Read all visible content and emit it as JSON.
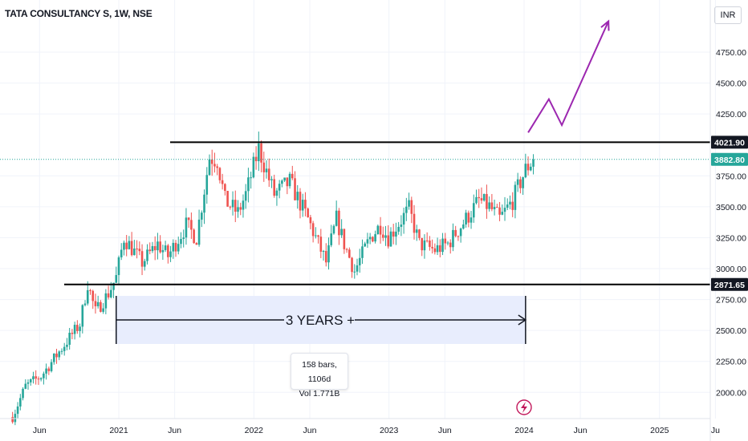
{
  "header": {
    "title": "TATA CONSULTANCY S, 1W, NSE",
    "currency": "INR"
  },
  "measure": {
    "label": "3 YEARS +",
    "bars": "158 bars, 1106d",
    "vol": "Vol 1.771B"
  },
  "price_tags": {
    "resistance": "4021.90",
    "current": "3882.80",
    "support": "2871.65"
  },
  "colors": {
    "up": "#26a69a",
    "down": "#ef5350",
    "arrow": "#9c27b0",
    "range_fill": "#e8edfd",
    "current_tag": "#26a69a",
    "level_tag": "#131722"
  },
  "chart_data": {
    "type": "candlestick",
    "symbol": "TATA CONSULTANCY S",
    "interval": "1W",
    "exchange": "NSE",
    "ylim": [
      1800,
      5050
    ],
    "y_ticks": [
      "2000.00",
      "2250.00",
      "2500.00",
      "2750.00",
      "3000.00",
      "3250.00",
      "3500.00",
      "3750.00",
      "4250.00",
      "4500.00",
      "4750.00"
    ],
    "x_ticks": [
      "Jun",
      "2021",
      "Jun",
      "2022",
      "Jun",
      "2023",
      "Jun",
      "2024",
      "Jun",
      "2025",
      "Ju"
    ],
    "horizontal_levels": [
      {
        "label": "4021.90",
        "value": 4021.9
      },
      {
        "label": "2871.65",
        "value": 2871.65
      }
    ],
    "current_price": 3882.8,
    "anchors": [
      [
        "2020-03-20",
        1800
      ],
      [
        "2020-04-24",
        2050
      ],
      [
        "2020-06-05",
        2130
      ],
      [
        "2020-07-17",
        2300
      ],
      [
        "2020-08-28",
        2470
      ],
      [
        "2020-09-18",
        2550
      ],
      [
        "2020-10-09",
        2880
      ],
      [
        "2020-10-30",
        2650
      ],
      [
        "2020-12-04",
        2800
      ],
      [
        "2020-12-25",
        2930
      ],
      [
        "2021-01-15",
        3250
      ],
      [
        "2021-03-05",
        3050
      ],
      [
        "2021-04-16",
        3200
      ],
      [
        "2021-05-14",
        3100
      ],
      [
        "2021-07-02",
        3350
      ],
      [
        "2021-07-30",
        3250
      ],
      [
        "2021-09-03",
        3900
      ],
      [
        "2021-09-24",
        3880
      ],
      [
        "2021-10-15",
        3550
      ],
      [
        "2021-11-19",
        3450
      ],
      [
        "2021-12-10",
        3600
      ],
      [
        "2022-01-14",
        3970
      ],
      [
        "2022-02-25",
        3600
      ],
      [
        "2022-04-08",
        3700
      ],
      [
        "2022-05-27",
        3400
      ],
      [
        "2022-06-24",
        3200
      ],
      [
        "2022-07-15",
        3050
      ],
      [
        "2022-08-12",
        3400
      ],
      [
        "2022-09-02",
        3200
      ],
      [
        "2022-09-30",
        2980
      ],
      [
        "2022-11-11",
        3250
      ],
      [
        "2022-12-09",
        3350
      ],
      [
        "2022-12-30",
        3250
      ],
      [
        "2023-02-24",
        3480
      ],
      [
        "2023-03-24",
        3200
      ],
      [
        "2023-05-05",
        3150
      ],
      [
        "2023-06-09",
        3200
      ],
      [
        "2023-07-28",
        3400
      ],
      [
        "2023-09-01",
        3550
      ],
      [
        "2023-09-29",
        3500
      ],
      [
        "2023-10-27",
        3400
      ],
      [
        "2023-12-01",
        3550
      ],
      [
        "2024-01-05",
        3800
      ],
      [
        "2024-01-26",
        3882.8
      ]
    ],
    "measure": {
      "start": "2020-12-25",
      "end": "2024-01-05",
      "bars": 158,
      "days": 1106,
      "volume": "1.771B",
      "label": "3 YEARS +"
    },
    "projection": [
      [
        "2024-01-12",
        4100
      ],
      [
        "2024-03-08",
        4370
      ],
      [
        "2024-04-12",
        4160
      ],
      [
        "2024-08-16",
        5000
      ]
    ]
  }
}
